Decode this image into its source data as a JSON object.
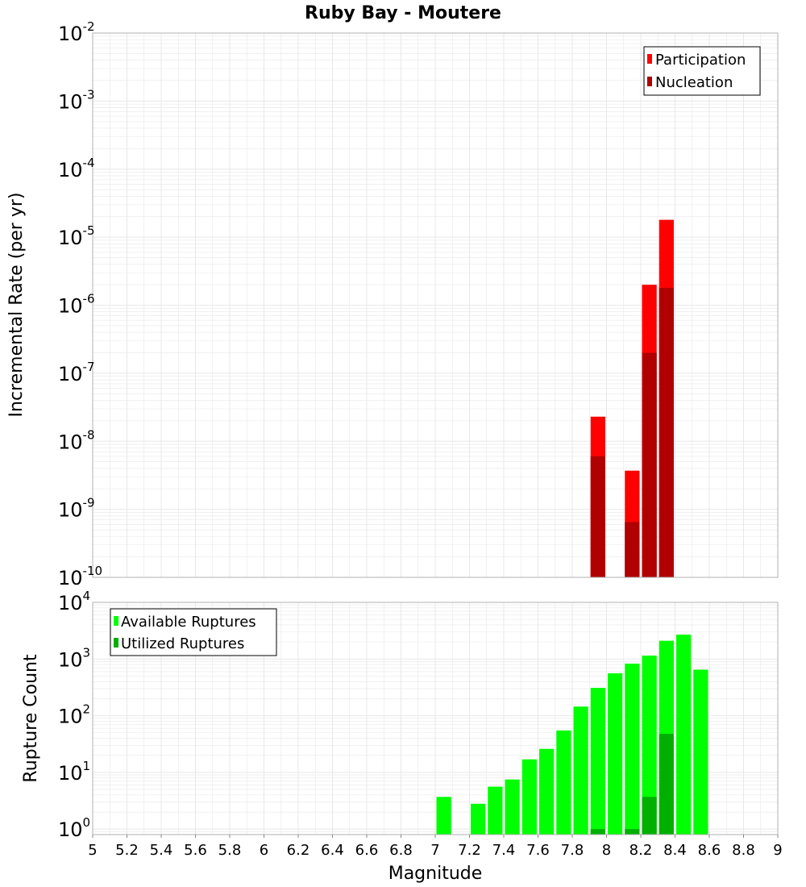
{
  "title": "Ruby Bay - Moutere",
  "colors": {
    "participation": "#ff0000",
    "nucleation": "#b00000",
    "available": "#00ff00",
    "utilized": "#00b000",
    "grid": "#e8e8e8",
    "frame": "#b0b0b0"
  },
  "chart_data": [
    {
      "type": "bar",
      "xlabel": "Magnitude",
      "ylabel": "Incremental Rate (per yr)",
      "y_scale": "log",
      "ylim": [
        1e-10,
        0.01
      ],
      "xlim": [
        5,
        9
      ],
      "y_ticks": [
        {
          "base": "10",
          "exp": "-2"
        },
        {
          "base": "10",
          "exp": "-3"
        },
        {
          "base": "10",
          "exp": "-4"
        },
        {
          "base": "10",
          "exp": "-5"
        },
        {
          "base": "10",
          "exp": "-6"
        },
        {
          "base": "10",
          "exp": "-7"
        },
        {
          "base": "10",
          "exp": "-8"
        },
        {
          "base": "10",
          "exp": "-9"
        },
        {
          "base": "10",
          "exp": "-10"
        }
      ],
      "legend": {
        "placement": "top-right",
        "items": [
          "Participation",
          "Nucleation"
        ]
      },
      "series": [
        {
          "name": "Participation",
          "x": [
            7.95,
            8.15,
            8.25,
            8.35
          ],
          "values": [
            2.3e-08,
            3.7e-09,
            2e-06,
            1.8e-05
          ]
        },
        {
          "name": "Nucleation",
          "x": [
            7.95,
            8.15,
            8.25,
            8.35
          ],
          "values": [
            6e-09,
            6.5e-10,
            2e-07,
            1.8e-06
          ]
        }
      ]
    },
    {
      "type": "bar",
      "xlabel": "Magnitude",
      "ylabel": "Rupture Count",
      "y_scale": "log",
      "ylim": [
        0.8,
        10000
      ],
      "xlim": [
        5,
        9
      ],
      "x_ticks": [
        "5",
        "5.2",
        "5.4",
        "5.6",
        "5.8",
        "6",
        "6.2",
        "6.4",
        "6.6",
        "6.8",
        "7",
        "7.2",
        "7.4",
        "7.6",
        "7.8",
        "8",
        "8.2",
        "8.4",
        "8.6",
        "8.8",
        "9"
      ],
      "y_ticks": [
        {
          "base": "10",
          "exp": "4"
        },
        {
          "base": "10",
          "exp": "3"
        },
        {
          "base": "10",
          "exp": "2"
        },
        {
          "base": "10",
          "exp": "1"
        },
        {
          "base": "10",
          "exp": "0"
        }
      ],
      "legend": {
        "placement": "top-left",
        "items": [
          "Available Ruptures",
          "Utilized Ruptures"
        ]
      },
      "series": [
        {
          "name": "Available Ruptures",
          "x": [
            7.05,
            7.25,
            7.35,
            7.45,
            7.55,
            7.65,
            7.75,
            7.85,
            7.95,
            8.05,
            8.15,
            8.25,
            8.35,
            8.45,
            8.55
          ],
          "values": [
            3.7,
            2.8,
            5.6,
            7.5,
            17,
            26,
            55,
            145,
            310,
            560,
            830,
            1150,
            2100,
            2700,
            650
          ]
        },
        {
          "name": "Utilized Ruptures",
          "x": [
            7.95,
            8.15,
            8.25,
            8.35
          ],
          "values": [
            1,
            1,
            3.7,
            48
          ]
        }
      ]
    }
  ]
}
